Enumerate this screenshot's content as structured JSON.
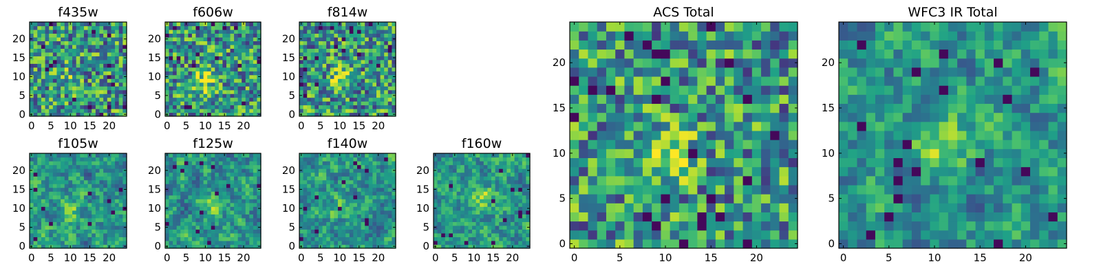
{
  "chart_data": [
    {
      "type": "heatmap",
      "title": "f435w",
      "grid_size": 25,
      "xticks": [
        0,
        5,
        10,
        15,
        20
      ],
      "yticks": [
        0,
        5,
        10,
        15,
        20
      ],
      "xlim": [
        0,
        24
      ],
      "ylim": [
        0,
        24
      ],
      "grid": false,
      "colormap": "viridis",
      "values": "pixel noise; faint central source"
    },
    {
      "type": "heatmap",
      "title": "f606w",
      "grid_size": 25,
      "xticks": [
        0,
        5,
        10,
        15,
        20
      ],
      "yticks": [
        0,
        5,
        10,
        15,
        20
      ],
      "xlim": [
        0,
        24
      ],
      "ylim": [
        0,
        24
      ],
      "grid": false,
      "colormap": "viridis",
      "values": "pixel noise; bright source near (10, 9)"
    },
    {
      "type": "heatmap",
      "title": "f814w",
      "grid_size": 25,
      "xticks": [
        0,
        5,
        10,
        15,
        20
      ],
      "yticks": [
        0,
        5,
        10,
        15,
        20
      ],
      "xlim": [
        0,
        24
      ],
      "ylim": [
        0,
        24
      ],
      "grid": false,
      "colormap": "viridis",
      "values": "pixel noise; source near (10, 10)"
    },
    {
      "type": "heatmap",
      "title": "f105w",
      "grid_size": 25,
      "xticks": [
        0,
        5,
        10,
        15,
        20
      ],
      "yticks": [
        0,
        5,
        10,
        15,
        20
      ],
      "xlim": [
        0,
        24
      ],
      "ylim": [
        0,
        24
      ],
      "grid": false,
      "colormap": "viridis",
      "values": "smoothed noise; source near (10, 10)"
    },
    {
      "type": "heatmap",
      "title": "f125w",
      "grid_size": 25,
      "xticks": [
        0,
        5,
        10,
        15,
        20
      ],
      "yticks": [
        0,
        5,
        10,
        15,
        20
      ],
      "xlim": [
        0,
        24
      ],
      "ylim": [
        0,
        24
      ],
      "grid": false,
      "colormap": "viridis",
      "values": "smoothed noise; extended source"
    },
    {
      "type": "heatmap",
      "title": "f140w",
      "grid_size": 25,
      "xticks": [
        0,
        5,
        10,
        15,
        20
      ],
      "yticks": [
        0,
        5,
        10,
        15,
        20
      ],
      "xlim": [
        0,
        24
      ],
      "ylim": [
        0,
        24
      ],
      "grid": false,
      "colormap": "viridis",
      "values": "smoothed noise; faint central source"
    },
    {
      "type": "heatmap",
      "title": "f160w",
      "grid_size": 25,
      "xticks": [
        0,
        5,
        10,
        15,
        20
      ],
      "yticks": [
        0,
        5,
        10,
        15,
        20
      ],
      "xlim": [
        0,
        24
      ],
      "ylim": [
        0,
        24
      ],
      "grid": false,
      "colormap": "viridis",
      "values": "smoothed noise; source near (12, 13)"
    },
    {
      "type": "heatmap",
      "title": "ACS Total",
      "grid_size": 25,
      "xticks": [
        0,
        5,
        10,
        15,
        20
      ],
      "yticks": [
        0,
        5,
        10,
        15,
        20
      ],
      "xlim": [
        0,
        24
      ],
      "ylim": [
        0,
        24
      ],
      "grid": false,
      "colormap": "viridis",
      "values": "summed ACS bands; bright source near (10, 10)"
    },
    {
      "type": "heatmap",
      "title": "WFC3 IR Total",
      "grid_size": 25,
      "xticks": [
        0,
        5,
        10,
        15,
        20
      ],
      "yticks": [
        0,
        5,
        10,
        15,
        20
      ],
      "xlim": [
        0,
        24
      ],
      "ylim": [
        0,
        24
      ],
      "grid": false,
      "colormap": "viridis",
      "values": "summed IR bands; bright source near (10, 11)"
    }
  ]
}
